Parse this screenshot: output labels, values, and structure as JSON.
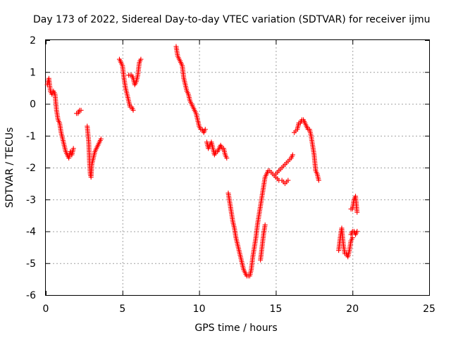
{
  "chart_data": {
    "type": "scatter",
    "title": "Day 173 of 2022, Sidereal Day-to-day VTEC variation (SDTVAR) for receiver ijmu",
    "xlabel": "GPS time / hours",
    "ylabel": "SDTVAR / TECUs",
    "xlim": [
      0,
      25
    ],
    "ylim": [
      -6,
      2
    ],
    "xticks": [
      0,
      5,
      10,
      15,
      20,
      25
    ],
    "yticks": [
      2,
      1,
      0,
      -1,
      -2,
      -3,
      -4,
      -5,
      -6
    ],
    "xtick_labels": [
      "0",
      "5",
      "10",
      "15",
      "20",
      "25"
    ],
    "ytick_labels": [
      "2",
      "1",
      "0",
      "-1",
      "-2",
      "-3",
      "-4",
      "-5",
      "-6"
    ],
    "grid": true,
    "legend": "none",
    "marker": "plus",
    "color": "#ff0000",
    "series": [
      {
        "name": "SDTVAR",
        "segments": [
          {
            "x": [
              0.1,
              0.2,
              0.3,
              0.4,
              0.5,
              0.6,
              0.7,
              0.8,
              0.9,
              1.0,
              1.1,
              1.2,
              1.3,
              1.4,
              1.5,
              1.6,
              1.7,
              1.8
            ],
            "y": [
              0.6,
              0.8,
              0.4,
              0.3,
              0.4,
              0.3,
              -0.2,
              -0.5,
              -0.6,
              -0.9,
              -1.1,
              -1.3,
              -1.5,
              -1.6,
              -1.7,
              -1.5,
              -1.6,
              -1.4
            ]
          },
          {
            "x": [
              2.0,
              2.1,
              2.2,
              2.3
            ],
            "y": [
              -0.3,
              -0.3,
              -0.2,
              -0.2
            ]
          },
          {
            "x": [
              2.7,
              2.8,
              2.85,
              2.9,
              2.95,
              3.0,
              3.1,
              3.2,
              3.3,
              3.4,
              3.5,
              3.6
            ],
            "y": [
              -0.7,
              -1.2,
              -1.8,
              -2.2,
              -2.3,
              -1.9,
              -1.7,
              -1.5,
              -1.4,
              -1.3,
              -1.2,
              -1.1
            ]
          },
          {
            "x": [
              4.8,
              4.9,
              5.0,
              5.1,
              5.2,
              5.3,
              5.4,
              5.5,
              5.6,
              5.7
            ],
            "y": [
              1.4,
              1.3,
              1.2,
              0.8,
              0.5,
              0.3,
              0.1,
              -0.1,
              -0.1,
              -0.2
            ]
          },
          {
            "x": [
              5.4,
              5.5,
              5.6,
              5.7,
              5.8,
              5.9,
              6.0,
              6.1,
              6.2
            ],
            "y": [
              0.9,
              0.9,
              0.9,
              0.8,
              0.6,
              0.7,
              0.9,
              1.3,
              1.4
            ]
          },
          {
            "x": [
              8.5,
              8.6,
              8.7,
              8.8,
              8.9,
              9.0,
              9.1,
              9.2,
              9.3,
              9.4,
              9.5,
              9.6,
              9.7,
              9.8,
              9.9,
              10.0,
              10.1,
              10.2,
              10.3,
              10.4
            ],
            "y": [
              1.8,
              1.5,
              1.4,
              1.3,
              1.2,
              0.8,
              0.6,
              0.4,
              0.3,
              0.1,
              0.0,
              -0.1,
              -0.2,
              -0.3,
              -0.5,
              -0.7,
              -0.8,
              -0.8,
              -0.9,
              -0.8
            ]
          },
          {
            "x": [
              10.5,
              10.6,
              10.7,
              10.8,
              10.9,
              11.0,
              11.1,
              11.2,
              11.3,
              11.4,
              11.5,
              11.6,
              11.7,
              11.8
            ],
            "y": [
              -1.2,
              -1.4,
              -1.3,
              -1.2,
              -1.4,
              -1.6,
              -1.5,
              -1.5,
              -1.4,
              -1.3,
              -1.4,
              -1.4,
              -1.6,
              -1.7
            ]
          },
          {
            "x": [
              11.9,
              12.0,
              12.1,
              12.2,
              12.3,
              12.4,
              12.5,
              12.6,
              12.7,
              12.8,
              12.9,
              13.0,
              13.1,
              13.2,
              13.3,
              13.4,
              13.5,
              13.6,
              13.7,
              13.8,
              13.9,
              14.0,
              14.1,
              14.2,
              14.3,
              14.4,
              14.5
            ],
            "y": [
              -2.8,
              -3.1,
              -3.4,
              -3.7,
              -3.9,
              -4.2,
              -4.4,
              -4.6,
              -4.8,
              -5.0,
              -5.2,
              -5.3,
              -5.4,
              -5.4,
              -5.4,
              -5.2,
              -4.8,
              -4.5,
              -4.2,
              -3.8,
              -3.5,
              -3.2,
              -2.9,
              -2.6,
              -2.3,
              -2.2,
              -2.1
            ]
          },
          {
            "x": [
              14.0,
              14.1,
              14.2,
              14.3
            ],
            "y": [
              -4.9,
              -4.5,
              -4.1,
              -3.8
            ]
          },
          {
            "x": [
              14.6,
              14.8,
              15.0,
              15.2,
              15.4,
              15.6,
              15.8
            ],
            "y": [
              -2.1,
              -2.2,
              -2.3,
              -2.4,
              -2.4,
              -2.5,
              -2.4
            ]
          },
          {
            "x": [
              15.0,
              15.2,
              15.4,
              15.6,
              15.8,
              16.0,
              16.1
            ],
            "y": [
              -2.2,
              -2.1,
              -2.0,
              -1.9,
              -1.8,
              -1.7,
              -1.6
            ]
          },
          {
            "x": [
              16.2,
              16.4,
              16.5,
              16.6,
              16.7,
              16.8,
              16.9,
              17.0,
              17.1,
              17.2,
              17.3,
              17.4,
              17.5,
              17.6,
              17.7,
              17.8
            ],
            "y": [
              -0.9,
              -0.8,
              -0.6,
              -0.6,
              -0.5,
              -0.5,
              -0.6,
              -0.7,
              -0.8,
              -0.8,
              -1.0,
              -1.3,
              -1.6,
              -2.1,
              -2.2,
              -2.4
            ]
          },
          {
            "x": [
              19.1,
              19.2,
              19.3,
              19.4,
              19.5,
              19.6,
              19.7,
              19.8,
              19.9,
              20.0
            ],
            "y": [
              -4.6,
              -4.2,
              -3.9,
              -4.4,
              -4.7,
              -4.7,
              -4.8,
              -4.6,
              -4.3,
              -4.2
            ]
          },
          {
            "x": [
              19.9,
              20.0,
              20.1,
              20.2,
              20.3
            ],
            "y": [
              -4.1,
              -4.0,
              -4.0,
              -4.1,
              -4.0
            ]
          },
          {
            "x": [
              19.9,
              20.0,
              20.1,
              20.2,
              20.3
            ],
            "y": [
              -3.3,
              -3.3,
              -3.0,
              -2.9,
              -3.4
            ]
          }
        ]
      }
    ]
  }
}
